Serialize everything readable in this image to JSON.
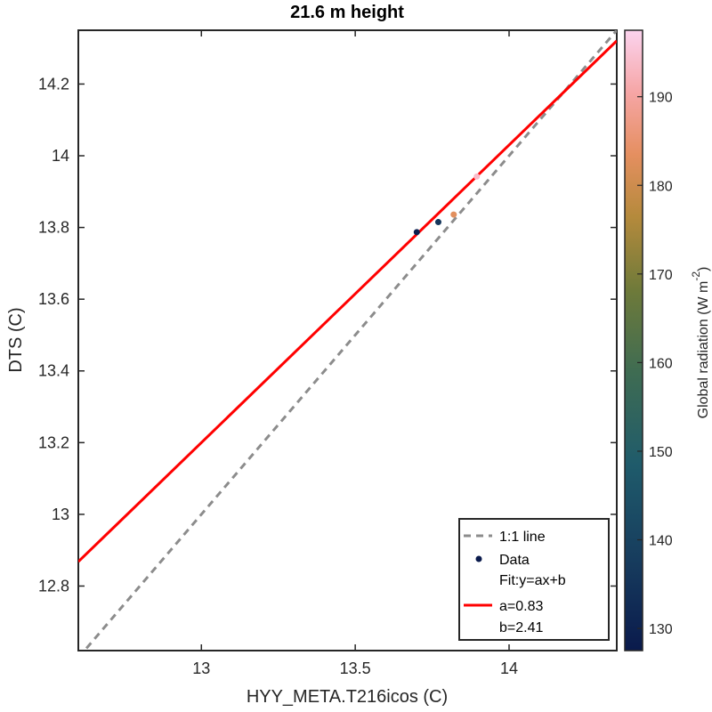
{
  "chart_data": {
    "type": "scatter",
    "title": "21.6 m height",
    "xlabel": "HYY_META.T216icos (C)",
    "ylabel": "DTS (C)",
    "xlim": [
      12.6,
      14.35
    ],
    "ylim": [
      12.62,
      14.35
    ],
    "xticks": [
      13,
      13.5,
      14
    ],
    "yticks": [
      12.8,
      13,
      13.2,
      13.4,
      13.6,
      13.8,
      14,
      14.2
    ],
    "grid": false,
    "points": [
      {
        "x": 13.7,
        "y": 13.787,
        "radiation": 129
      },
      {
        "x": 13.77,
        "y": 13.815,
        "radiation": 136
      },
      {
        "x": 13.82,
        "y": 13.836,
        "radiation": 183
      },
      {
        "x": 13.895,
        "y": 13.942,
        "radiation": 194
      }
    ],
    "identity_line": {
      "label": "1:1 line",
      "color": "#8c8c8c"
    },
    "fit": {
      "a": 0.83,
      "b": 2.41,
      "color": "#ff0000"
    },
    "colorbar": {
      "label": "Global radiation (W m",
      "label_superscript": "-2",
      "label_close": ")",
      "range": [
        127.5,
        197.5
      ],
      "ticks": [
        130,
        140,
        150,
        160,
        170,
        180,
        190
      ]
    },
    "legend": {
      "placement": "bottom-right",
      "entries": [
        "1:1 line",
        "Data",
        "Fit:y=ax+b",
        "a=0.83",
        "b=2.41"
      ]
    }
  }
}
